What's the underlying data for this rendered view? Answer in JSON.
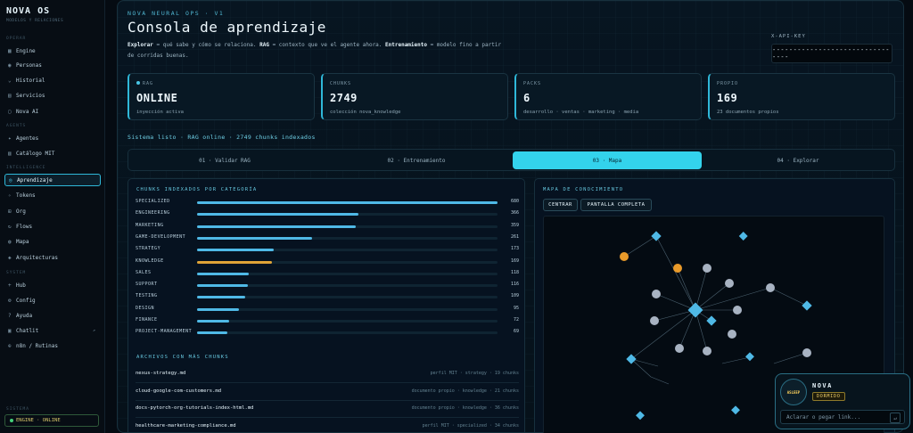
{
  "sidebar": {
    "brand": "NOVA OS",
    "brand_sub": "MODELOS Y RELACIONES",
    "sections": [
      "OPERAR",
      "AGENTS",
      "INTELLIGENCE",
      "SYSTEM"
    ],
    "items": [
      {
        "label": "Engine",
        "icon": "grid-icon"
      },
      {
        "label": "Personas",
        "icon": "users-icon"
      },
      {
        "label": "Historial",
        "icon": "chevron-icon"
      },
      {
        "label": "Servicios",
        "icon": "server-icon"
      },
      {
        "label": "Nova AI",
        "icon": "chat-icon"
      },
      {
        "label": "Agentes",
        "icon": "star-icon"
      },
      {
        "label": "Catálogo MIT",
        "icon": "book-icon"
      },
      {
        "label": "Aprendizaje",
        "icon": "brain-icon"
      },
      {
        "label": "Tokens",
        "icon": "token-icon"
      },
      {
        "label": "Org",
        "icon": "org-icon"
      },
      {
        "label": "Flows",
        "icon": "flow-icon"
      },
      {
        "label": "Mapa",
        "icon": "map-icon"
      },
      {
        "label": "Arquitecturas",
        "icon": "layers-icon"
      },
      {
        "label": "Hub",
        "icon": "hub-icon"
      },
      {
        "label": "Config",
        "icon": "gear-icon"
      },
      {
        "label": "Ayuda",
        "icon": "help-icon"
      },
      {
        "label": "Chatlit",
        "icon": "chat-icon"
      },
      {
        "label": "n8n / Rutinas",
        "icon": "routine-icon"
      }
    ],
    "system_label": "SISTEMA",
    "system_status": "ENGINE · ONLINE"
  },
  "header": {
    "kicker": "NOVA NEURAL OPS · V1",
    "title": "Consola de aprendizaje",
    "desc_b1": "Explorar",
    "desc_t1": " = qué sabe y cómo se relaciona. ",
    "desc_b2": "RAG",
    "desc_t2": " = contexto que ve el agente ahora. ",
    "desc_b3": "Entrenamiento",
    "desc_t3": " = modelo fino a partir de corridas buenas.",
    "apikey_label": "X-API-KEY",
    "apikey_value": "--------------------------------"
  },
  "cards": [
    {
      "label": "RAG",
      "value": "ONLINE",
      "sub": "inyección activa"
    },
    {
      "label": "CHUNKS",
      "value": "2749",
      "sub": "colección nova_knowledge"
    },
    {
      "label": "PACKS",
      "value": "6",
      "sub": "desarrollo · ventas · marketing · media"
    },
    {
      "label": "PROPIO",
      "value": "169",
      "sub": "23 documentos propios"
    }
  ],
  "status_line": "Sistema listo · RAG online · 2749 chunks indexados",
  "tabs": [
    "01 · Validar RAG",
    "02 · Entrenamiento",
    "03 · Mapa",
    "04 · Explorar"
  ],
  "active_tab": 2,
  "chunks_panel": {
    "title": "CHUNKS INDEXADOS POR CATEGORÍA",
    "max": 680,
    "categories": [
      {
        "name": "SPECIALIZED",
        "value": 680,
        "color": "#4fb9e6"
      },
      {
        "name": "ENGINEERING",
        "value": 366,
        "color": "#4fb9e6"
      },
      {
        "name": "MARKETING",
        "value": 359,
        "color": "#4fb9e6"
      },
      {
        "name": "GAME-DEVELOPMENT",
        "value": 261,
        "color": "#4fb9e6"
      },
      {
        "name": "STRATEGY",
        "value": 173,
        "color": "#4fb9e6"
      },
      {
        "name": "KNOWLEDGE",
        "value": 169,
        "color": "#e0a437"
      },
      {
        "name": "SALES",
        "value": 118,
        "color": "#4fb9e6"
      },
      {
        "name": "SUPPORT",
        "value": 116,
        "color": "#4fb9e6"
      },
      {
        "name": "TESTING",
        "value": 109,
        "color": "#4fb9e6"
      },
      {
        "name": "DESIGN",
        "value": 95,
        "color": "#4fb9e6"
      },
      {
        "name": "FINANCE",
        "value": 72,
        "color": "#4fb9e6"
      },
      {
        "name": "PROJECT-MANAGEMENT",
        "value": 69,
        "color": "#4fb9e6"
      }
    ],
    "files_title": "ARCHIVOS CON MÁS CHUNKS",
    "files": [
      {
        "name": "nexus-strategy.md",
        "meta": "perfil MIT · strategy · 19 chunks"
      },
      {
        "name": "cloud-google-com-customers.md",
        "meta": "documento propio · knowledge · 21 chunks"
      },
      {
        "name": "docs-pytorch-org-tutorials-index-html.md",
        "meta": "documento propio · knowledge · 36 chunks"
      },
      {
        "name": "healthcare-marketing-compliance.md",
        "meta": "perfil MIT · specialized · 34 chunks"
      }
    ]
  },
  "map_panel": {
    "title": "MAPA DE CONOCIMIENTO",
    "center_btn": "CENTRAR",
    "fullscreen_btn": "PANTALLA COMPLETA"
  },
  "nova": {
    "name": "NOVA",
    "avatar_text": "ASLEEP",
    "status": "DORMIDO",
    "placeholder": "Aclarar o pegar link..."
  }
}
